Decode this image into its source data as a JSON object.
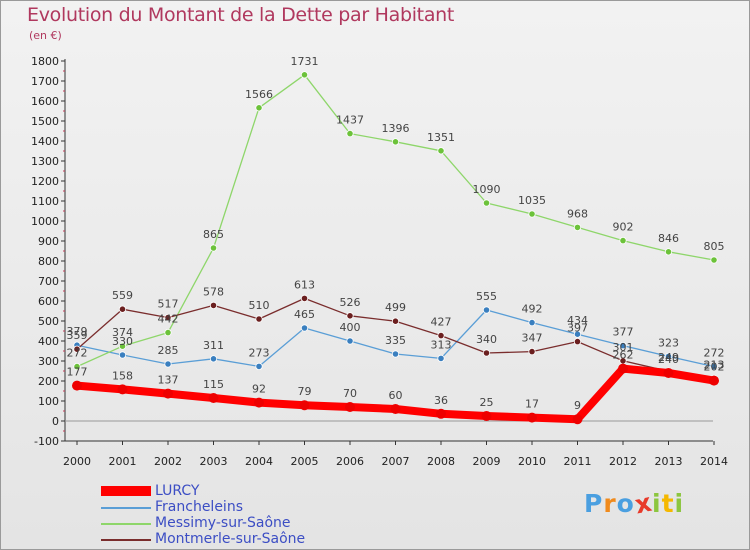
{
  "title": "Evolution du Montant de la Dette par Habitant",
  "subtitle": "(en €)",
  "logo": {
    "text": "Proxiti",
    "letters": [
      "P",
      "r",
      "o",
      "x",
      "i",
      "t",
      "i"
    ],
    "colors": [
      "#4a9fe0",
      "#f08a1c",
      "#4a9fe0",
      "#e83a2a",
      "#8cc63f",
      "#f5b800",
      "#8cc63f"
    ]
  },
  "chart_data": {
    "type": "line",
    "title": "Evolution du Montant de la Dette par Habitant",
    "ylabel": "(en €)",
    "xlabel": "",
    "categories": [
      "2000",
      "2001",
      "2002",
      "2003",
      "2004",
      "2005",
      "2006",
      "2007",
      "2008",
      "2009",
      "2010",
      "2011",
      "2012",
      "2013",
      "2014"
    ],
    "ylim": [
      -100,
      1800
    ],
    "yticks": [
      "-100",
      "0",
      "100",
      "200",
      "300",
      "400",
      "500",
      "600",
      "700",
      "800",
      "900",
      "1000",
      "1100",
      "1200",
      "1300",
      "1400",
      "1500",
      "1600",
      "1700",
      "1800"
    ],
    "grid": false,
    "legend_position": "bottom-left",
    "series": [
      {
        "name": "Francheleins",
        "color": "#5a9ed6",
        "pointColor": "#3a7fbf",
        "values": [
          379,
          330,
          285,
          311,
          273,
          465,
          400,
          335,
          313,
          555,
          492,
          434,
          377,
          323,
          272
        ],
        "labels": [
          "379",
          "330",
          "285",
          "311",
          "273",
          "465",
          "400",
          "335",
          "313",
          "555",
          "492",
          "434",
          "377",
          "323",
          "272"
        ]
      },
      {
        "name": "Messimy-sur-Saône",
        "color": "#8ed66a",
        "pointColor": "#6cc23a",
        "values": [
          272,
          374,
          442,
          865,
          1566,
          1731,
          1437,
          1396,
          1351,
          1090,
          1035,
          968,
          902,
          846,
          805
        ],
        "labels": [
          "272",
          "374",
          "442",
          "865",
          "1566",
          "1731",
          "1437",
          "1396",
          "1351",
          "1090",
          "1035",
          "968",
          "902",
          "846",
          "805"
        ]
      },
      {
        "name": "Montmerle-sur-Saône",
        "color": "#7a2d2d",
        "pointColor": "#6b1f1f",
        "values": [
          359,
          559,
          517,
          578,
          510,
          613,
          526,
          499,
          427,
          340,
          347,
          397,
          301,
          249,
          213
        ],
        "labels": [
          "359",
          "559",
          "517",
          "578",
          "510",
          "613",
          "526",
          "499",
          "427",
          "340",
          "347",
          "397",
          "301",
          "249",
          "213"
        ]
      },
      {
        "name": "LURCY",
        "color": "#ff0000",
        "pointColor": "#ee0000",
        "values": [
          177,
          158,
          137,
          115,
          92,
          79,
          70,
          60,
          36,
          25,
          17,
          9,
          262,
          240,
          202
        ],
        "labels": [
          "177",
          "158",
          "137",
          "115",
          "92",
          "79",
          "70",
          "60",
          "36",
          "25",
          "17",
          "9",
          "262",
          "240",
          "202"
        ]
      }
    ]
  },
  "legend": [
    {
      "name": "LURCY",
      "color": "#ff0000"
    },
    {
      "name": "Francheleins",
      "color": "#5a9ed6"
    },
    {
      "name": "Messimy-sur-Saône",
      "color": "#8ed66a"
    },
    {
      "name": "Montmerle-sur-Saône",
      "color": "#7a2d2d"
    }
  ]
}
